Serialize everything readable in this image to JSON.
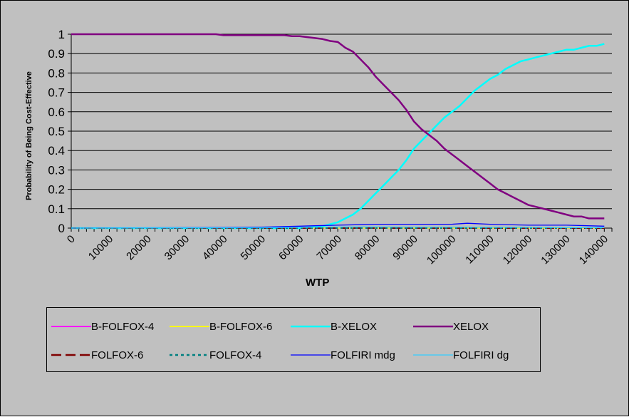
{
  "chart_data": {
    "type": "line",
    "title": "",
    "xlabel": "WTP",
    "ylabel": "Probability of Being Cost-Effective",
    "xlim": [
      0,
      142000
    ],
    "ylim": [
      0,
      1
    ],
    "y_ticks": [
      "0",
      "0.1",
      "0.2",
      "0.3",
      "0.4",
      "0.5",
      "0.6",
      "0.7",
      "0.8",
      "0.9",
      "1"
    ],
    "x_ticks": [
      "0",
      "10000",
      "20000",
      "30000",
      "40000",
      "50000",
      "60000",
      "70000",
      "80000",
      "90000",
      "100000",
      "110000",
      "120000",
      "130000",
      "140000"
    ],
    "gridlines": "horizontal",
    "legend_position": "bottom",
    "series": [
      {
        "name": "B-FOLFOX-4",
        "color": "#ff00ff",
        "style": "solid",
        "x": [
          0,
          140000
        ],
        "y": [
          0.0,
          0.0
        ]
      },
      {
        "name": "B-FOLFOX-6",
        "color": "#ffff00",
        "style": "solid",
        "x": [
          0,
          140000
        ],
        "y": [
          0.0,
          0.0
        ]
      },
      {
        "name": "B-XELOX",
        "color": "#00ffff",
        "style": "solid",
        "x": [
          0,
          60000,
          66000,
          70000,
          72000,
          74000,
          76000,
          78000,
          80000,
          82000,
          84000,
          86000,
          88000,
          90000,
          92000,
          94000,
          96000,
          98000,
          100000,
          102000,
          104000,
          106000,
          108000,
          110000,
          112000,
          114000,
          116000,
          118000,
          120000,
          122000,
          124000,
          126000,
          128000,
          130000,
          132000,
          134000,
          136000,
          138000,
          140000
        ],
        "y": [
          0.0,
          0.0,
          0.01,
          0.03,
          0.05,
          0.07,
          0.1,
          0.14,
          0.18,
          0.22,
          0.26,
          0.3,
          0.35,
          0.41,
          0.45,
          0.49,
          0.53,
          0.57,
          0.6,
          0.63,
          0.67,
          0.71,
          0.74,
          0.77,
          0.79,
          0.82,
          0.84,
          0.86,
          0.87,
          0.88,
          0.89,
          0.9,
          0.91,
          0.92,
          0.92,
          0.93,
          0.94,
          0.94,
          0.95
        ]
      },
      {
        "name": "XELOX",
        "color": "#800080",
        "style": "solid",
        "x": [
          0,
          10000,
          20000,
          30000,
          38000,
          40000,
          50000,
          54000,
          56000,
          58000,
          60000,
          62000,
          64000,
          66000,
          68000,
          70000,
          72000,
          74000,
          76000,
          78000,
          80000,
          82000,
          84000,
          86000,
          88000,
          90000,
          92000,
          94000,
          96000,
          98000,
          100000,
          102000,
          104000,
          106000,
          108000,
          110000,
          112000,
          114000,
          116000,
          118000,
          120000,
          122000,
          124000,
          126000,
          128000,
          130000,
          132000,
          134000,
          136000,
          138000,
          140000
        ],
        "y": [
          1.0,
          1.0,
          1.0,
          1.0,
          1.0,
          0.995,
          0.995,
          0.995,
          0.995,
          0.99,
          0.99,
          0.985,
          0.98,
          0.975,
          0.965,
          0.96,
          0.93,
          0.91,
          0.87,
          0.83,
          0.78,
          0.74,
          0.7,
          0.66,
          0.61,
          0.55,
          0.51,
          0.48,
          0.45,
          0.41,
          0.38,
          0.35,
          0.32,
          0.29,
          0.26,
          0.23,
          0.2,
          0.18,
          0.16,
          0.14,
          0.12,
          0.11,
          0.1,
          0.09,
          0.08,
          0.07,
          0.06,
          0.06,
          0.05,
          0.05,
          0.05
        ]
      },
      {
        "name": "FOLFOX-6",
        "color": "#800000",
        "style": "dashed",
        "x": [
          0,
          140000
        ],
        "y": [
          0.0,
          0.0
        ]
      },
      {
        "name": "FOLFOX-4",
        "color": "#008080",
        "style": "dotted",
        "x": [
          0,
          140000
        ],
        "y": [
          0.0,
          0.0
        ]
      },
      {
        "name": "FOLFIRI mdg",
        "color": "#0000ff",
        "style": "solid",
        "x": [
          0,
          40000,
          50000,
          60000,
          64000,
          70000,
          80000,
          90000,
          100000,
          104000,
          110000,
          120000,
          130000,
          140000
        ],
        "y": [
          0.0,
          0.003,
          0.005,
          0.01,
          0.012,
          0.015,
          0.02,
          0.02,
          0.02,
          0.025,
          0.02,
          0.015,
          0.015,
          0.01
        ]
      },
      {
        "name": "FOLFIRI dg",
        "color": "#33ccff",
        "style": "solid",
        "x": [
          0,
          50000,
          60000,
          70000,
          80000,
          90000,
          100000,
          110000,
          120000,
          130000,
          140000
        ],
        "y": [
          0.0,
          0.002,
          0.004,
          0.006,
          0.006,
          0.005,
          0.005,
          0.004,
          0.004,
          0.003,
          0.003
        ]
      }
    ]
  }
}
